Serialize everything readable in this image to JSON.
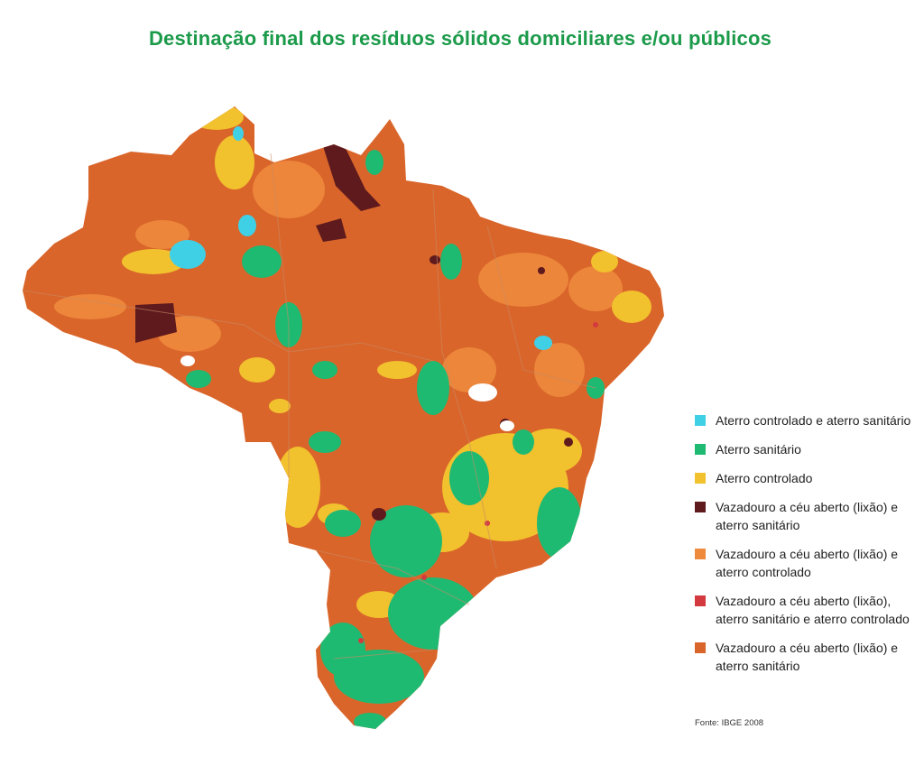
{
  "title": "Destinação final dos resíduos sólidos domiciliares e/ou públicos",
  "map": {
    "base_color": "#d9652a"
  },
  "legend": {
    "items": [
      {
        "label": "Aterro controlado e  aterro sanitário",
        "color": "#3fd0e6"
      },
      {
        "label": "Aterro sanitário",
        "color": "#1fba72"
      },
      {
        "label": "Aterro controlado",
        "color": "#f2c12e"
      },
      {
        "label": "Vazadouro a céu aberto (lixão) e aterro sanitário",
        "color": "#5e1a1d"
      },
      {
        "label": "Vazadouro a céu aberto (lixão) e aterro controlado",
        "color": "#ee8a3c"
      },
      {
        "label": "Vazadouro a céu aberto (lixão), aterro sanitário e aterro controlado",
        "color": "#d33a3f"
      },
      {
        "label": "Vazadouro a céu aberto (lixão) e aterro sanitário",
        "color": "#d9652a"
      }
    ]
  },
  "source": "Fonte: IBGE 2008"
}
